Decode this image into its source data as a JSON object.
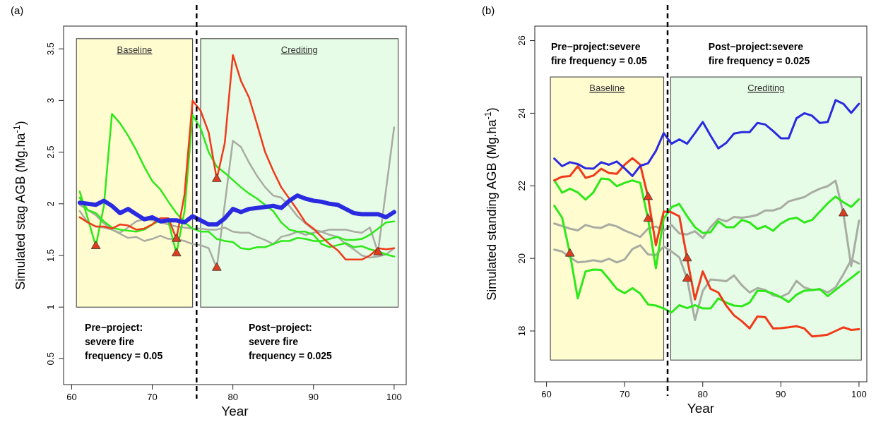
{
  "chart_data": [
    {
      "type": "line",
      "title": "(a)",
      "xlabel": "Year",
      "ylabel": "Simulated stag AGB (Mg.ha$^{-1}$)",
      "x": [
        61,
        62,
        63,
        64,
        65,
        66,
        67,
        68,
        69,
        70,
        71,
        72,
        73,
        74,
        75,
        76,
        77,
        78,
        79,
        80,
        81,
        82,
        83,
        84,
        85,
        86,
        87,
        88,
        89,
        90,
        91,
        92,
        93,
        94,
        95,
        96,
        97,
        98,
        99,
        100
      ],
      "xlim": [
        59,
        101.5
      ],
      "xticks": [
        60,
        70,
        80,
        90,
        100
      ],
      "ylim": [
        0.25,
        3.72
      ],
      "yticks": [
        0.5,
        1.0,
        1.5,
        2.0,
        2.5,
        3.0,
        3.5
      ],
      "bands": [
        {
          "axis": "x",
          "from": 60.6,
          "to": 75,
          "label": "Baseline",
          "color": "#fffcd0"
        },
        {
          "axis": "x",
          "from": 76,
          "to": 100.5,
          "label": "Crediting",
          "color": "#e6fce6"
        }
      ],
      "ref_lines": [
        {
          "axis": "x",
          "value": 75.5,
          "color": "#000000",
          "line_style": "dashed"
        }
      ],
      "annotations": [
        "Pre−project:\nsevere fire\nfrequency = 0.05",
        "Post−project:\nsevere fire\nfrequency = 0.025"
      ],
      "series": [
        {
          "color": "#a8aca2",
          "values": [
            1.99,
            1.94,
            1.89,
            1.81,
            1.75,
            1.72,
            1.77,
            1.83,
            1.85,
            1.84,
            1.82,
            1.8,
            1.78,
            1.77,
            1.76,
            1.76,
            1.75,
            1.75,
            1.77,
            1.73,
            1.72,
            1.72,
            1.68,
            1.65,
            1.61,
            1.68,
            1.7,
            1.73,
            1.7,
            1.72,
            1.73,
            1.75,
            1.75,
            1.75,
            1.73,
            1.72,
            1.77,
            1.53,
            2.14,
            2.74
          ]
        },
        {
          "color": "#a8aca2",
          "values": [
            1.93,
            1.82,
            1.78,
            1.77,
            1.75,
            1.71,
            1.67,
            1.68,
            1.64,
            1.66,
            1.69,
            1.66,
            1.66,
            1.64,
            1.61,
            1.6,
            1.57,
            1.38,
            2.0,
            2.61,
            2.55,
            2.4,
            2.27,
            2.16,
            2.08,
            2.06,
            1.98,
            1.88,
            1.81,
            1.75,
            1.73,
            1.7,
            1.68,
            1.61,
            1.56,
            1.5,
            1.48,
            1.49,
            1.51,
            1.57
          ]
        },
        {
          "color": "#2ee81a",
          "values": [
            2.12,
            1.86,
            1.59,
            1.98,
            2.87,
            2.78,
            2.66,
            2.52,
            2.36,
            2.22,
            2.14,
            2.02,
            1.91,
            1.82,
            1.76,
            1.73,
            1.73,
            1.66,
            1.64,
            1.63,
            1.57,
            1.56,
            1.58,
            1.58,
            1.61,
            1.64,
            1.64,
            1.67,
            1.66,
            1.64,
            1.64,
            1.66,
            1.68,
            1.65,
            1.65,
            1.66,
            1.7,
            1.76,
            1.82,
            1.83
          ]
        },
        {
          "color": "#2ee81a",
          "values": [
            2.06,
            1.94,
            1.91,
            1.83,
            1.77,
            1.75,
            1.74,
            1.73,
            1.75,
            1.8,
            1.84,
            1.83,
            1.52,
            1.93,
            2.86,
            2.73,
            2.5,
            2.36,
            2.3,
            2.23,
            2.16,
            2.1,
            2.05,
            1.99,
            1.93,
            1.82,
            1.75,
            1.73,
            1.73,
            1.7,
            1.61,
            1.58,
            1.6,
            1.62,
            1.58,
            1.59,
            1.56,
            1.54,
            1.51,
            1.49
          ]
        },
        {
          "color": "#f03a1a",
          "values": [
            1.87,
            1.82,
            1.78,
            1.78,
            1.76,
            1.8,
            1.79,
            1.75,
            1.76,
            1.8,
            1.86,
            1.86,
            1.66,
            2.09,
            3.0,
            2.9,
            2.69,
            2.24,
            2.59,
            3.44,
            3.19,
            3.03,
            2.77,
            2.5,
            2.32,
            2.16,
            2.05,
            1.94,
            1.82,
            1.76,
            1.68,
            1.61,
            1.55,
            1.46,
            1.46,
            1.46,
            1.5,
            1.57,
            1.56,
            1.57
          ]
        },
        {
          "color": "#2a2ae0",
          "values": [
            2.01,
            2.0,
            1.99,
            2.03,
            1.98,
            1.91,
            1.95,
            1.9,
            1.85,
            1.87,
            1.83,
            1.84,
            1.84,
            1.82,
            1.88,
            1.84,
            1.8,
            1.8,
            1.86,
            1.95,
            1.92,
            1.95,
            1.96,
            1.97,
            1.98,
            1.96,
            2.03,
            2.08,
            2.05,
            2.03,
            2.02,
            2.0,
            1.99,
            1.95,
            1.91,
            1.9,
            1.9,
            1.9,
            1.87,
            1.92
          ]
        },
        {
          "type": "scatter",
          "marker": "triangle",
          "color": "#e03c1e",
          "x": [
            63,
            73,
            73,
            78,
            78,
            98
          ],
          "values": [
            1.59,
            1.66,
            1.52,
            2.24,
            1.38,
            1.53
          ]
        }
      ]
    },
    {
      "type": "line",
      "title": "(b)",
      "xlabel": "Year",
      "ylabel": "Simulated standing AGB (Mg.ha$^{-1}$)",
      "x": [
        61,
        62,
        63,
        64,
        65,
        66,
        67,
        68,
        69,
        70,
        71,
        72,
        73,
        74,
        75,
        76,
        77,
        78,
        79,
        80,
        81,
        82,
        83,
        84,
        85,
        86,
        87,
        88,
        89,
        90,
        91,
        92,
        93,
        94,
        95,
        96,
        97,
        98,
        99,
        100
      ],
      "xlim": [
        58.5,
        101
      ],
      "xticks": [
        60,
        70,
        80,
        90,
        100
      ],
      "ylim": [
        16.6,
        26.4
      ],
      "yticks": [
        18,
        20,
        22,
        24,
        26
      ],
      "bands": [
        {
          "axis": "x",
          "from": 60.5,
          "to": 75,
          "label": "Baseline",
          "color": "#fffcd0"
        },
        {
          "axis": "x",
          "from": 75.9,
          "to": 100.3,
          "label": "Crediting",
          "color": "#e6fce6"
        }
      ],
      "ref_lines": [
        {
          "axis": "x",
          "value": 75.5,
          "color": "#000000",
          "line_style": "dashed"
        }
      ],
      "annotations": [
        "Pre−project:severe\nfire frequency = 0.05",
        "Post−project:severe\nfire frequency = 0.025"
      ],
      "series": [
        {
          "color": "#a8aca2",
          "values": [
            20.96,
            20.89,
            20.82,
            20.77,
            20.92,
            20.86,
            20.84,
            20.94,
            20.88,
            20.77,
            20.68,
            20.59,
            20.82,
            20.88,
            20.76,
            20.92,
            20.69,
            20.66,
            20.75,
            20.56,
            20.86,
            21.09,
            21.02,
            21.14,
            21.12,
            21.15,
            21.2,
            21.32,
            21.32,
            21.39,
            21.57,
            21.63,
            21.69,
            21.82,
            21.92,
            21.99,
            22.14,
            21.24,
            19.79,
            21.04
          ]
        },
        {
          "color": "#a8aca2",
          "values": [
            20.24,
            20.19,
            20.03,
            19.89,
            19.91,
            19.95,
            19.91,
            19.99,
            19.89,
            19.97,
            20.26,
            20.36,
            20.11,
            20.09,
            20.33,
            20.19,
            20.03,
            19.44,
            18.3,
            19.1,
            19.42,
            19.4,
            19.37,
            19.53,
            19.26,
            19.06,
            19.18,
            19.13,
            18.98,
            18.94,
            19.04,
            19.38,
            19.2,
            19.13,
            19.15,
            19.06,
            19.2,
            19.56,
            19.96,
            19.86
          ]
        },
        {
          "color": "#2ee81a",
          "values": [
            22.15,
            21.81,
            21.92,
            21.82,
            21.62,
            21.82,
            22.2,
            22.18,
            21.99,
            22.08,
            22.15,
            22.08,
            21.09,
            19.73,
            21.09,
            21.41,
            21.5,
            21.16,
            20.86,
            20.7,
            20.72,
            21.02,
            20.86,
            20.86,
            21.06,
            20.99,
            20.81,
            20.89,
            20.76,
            20.96,
            21.08,
            21.12,
            20.99,
            21.06,
            21.29,
            21.52,
            21.7,
            21.55,
            21.42,
            21.63
          ]
        },
        {
          "color": "#2ee81a",
          "values": [
            21.45,
            21.12,
            20.13,
            18.9,
            19.64,
            19.69,
            19.68,
            19.43,
            19.16,
            19.04,
            19.18,
            19.03,
            18.73,
            18.7,
            18.62,
            18.51,
            18.71,
            18.63,
            18.71,
            18.62,
            18.62,
            18.9,
            18.78,
            18.7,
            18.68,
            18.78,
            19.11,
            19.1,
            19.03,
            18.93,
            18.8,
            19.0,
            19.11,
            19.13,
            19.15,
            18.96,
            19.13,
            19.3,
            19.46,
            19.63
          ]
        },
        {
          "color": "#f03a1a",
          "values": [
            22.15,
            22.25,
            22.27,
            22.54,
            22.22,
            22.28,
            22.47,
            22.35,
            22.33,
            22.58,
            22.76,
            22.58,
            21.69,
            20.36,
            21.29,
            21.27,
            21.16,
            20.0,
            18.87,
            19.64,
            19.16,
            19.06,
            18.7,
            18.43,
            18.27,
            18.07,
            18.4,
            18.38,
            18.07,
            18.08,
            18.1,
            18.13,
            18.07,
            17.85,
            17.87,
            17.9,
            18.0,
            18.1,
            18.03,
            18.05
          ]
        },
        {
          "color": "#2a2ae0",
          "values": [
            22.75,
            22.54,
            22.65,
            22.6,
            22.48,
            22.47,
            22.65,
            22.58,
            22.67,
            22.48,
            22.27,
            22.55,
            22.62,
            22.96,
            23.45,
            23.16,
            23.28,
            23.16,
            23.45,
            23.76,
            23.38,
            23.03,
            23.18,
            23.44,
            23.48,
            23.48,
            23.73,
            23.69,
            23.51,
            23.31,
            23.31,
            23.86,
            24.0,
            23.93,
            23.73,
            23.76,
            24.36,
            24.26,
            24.01,
            24.26
          ]
        },
        {
          "type": "scatter",
          "marker": "triangle",
          "color": "#e03c1e",
          "x": [
            63,
            73,
            73,
            78,
            78,
            98
          ],
          "values": [
            20.13,
            21.69,
            21.09,
            20.0,
            19.44,
            21.24
          ]
        }
      ]
    }
  ]
}
